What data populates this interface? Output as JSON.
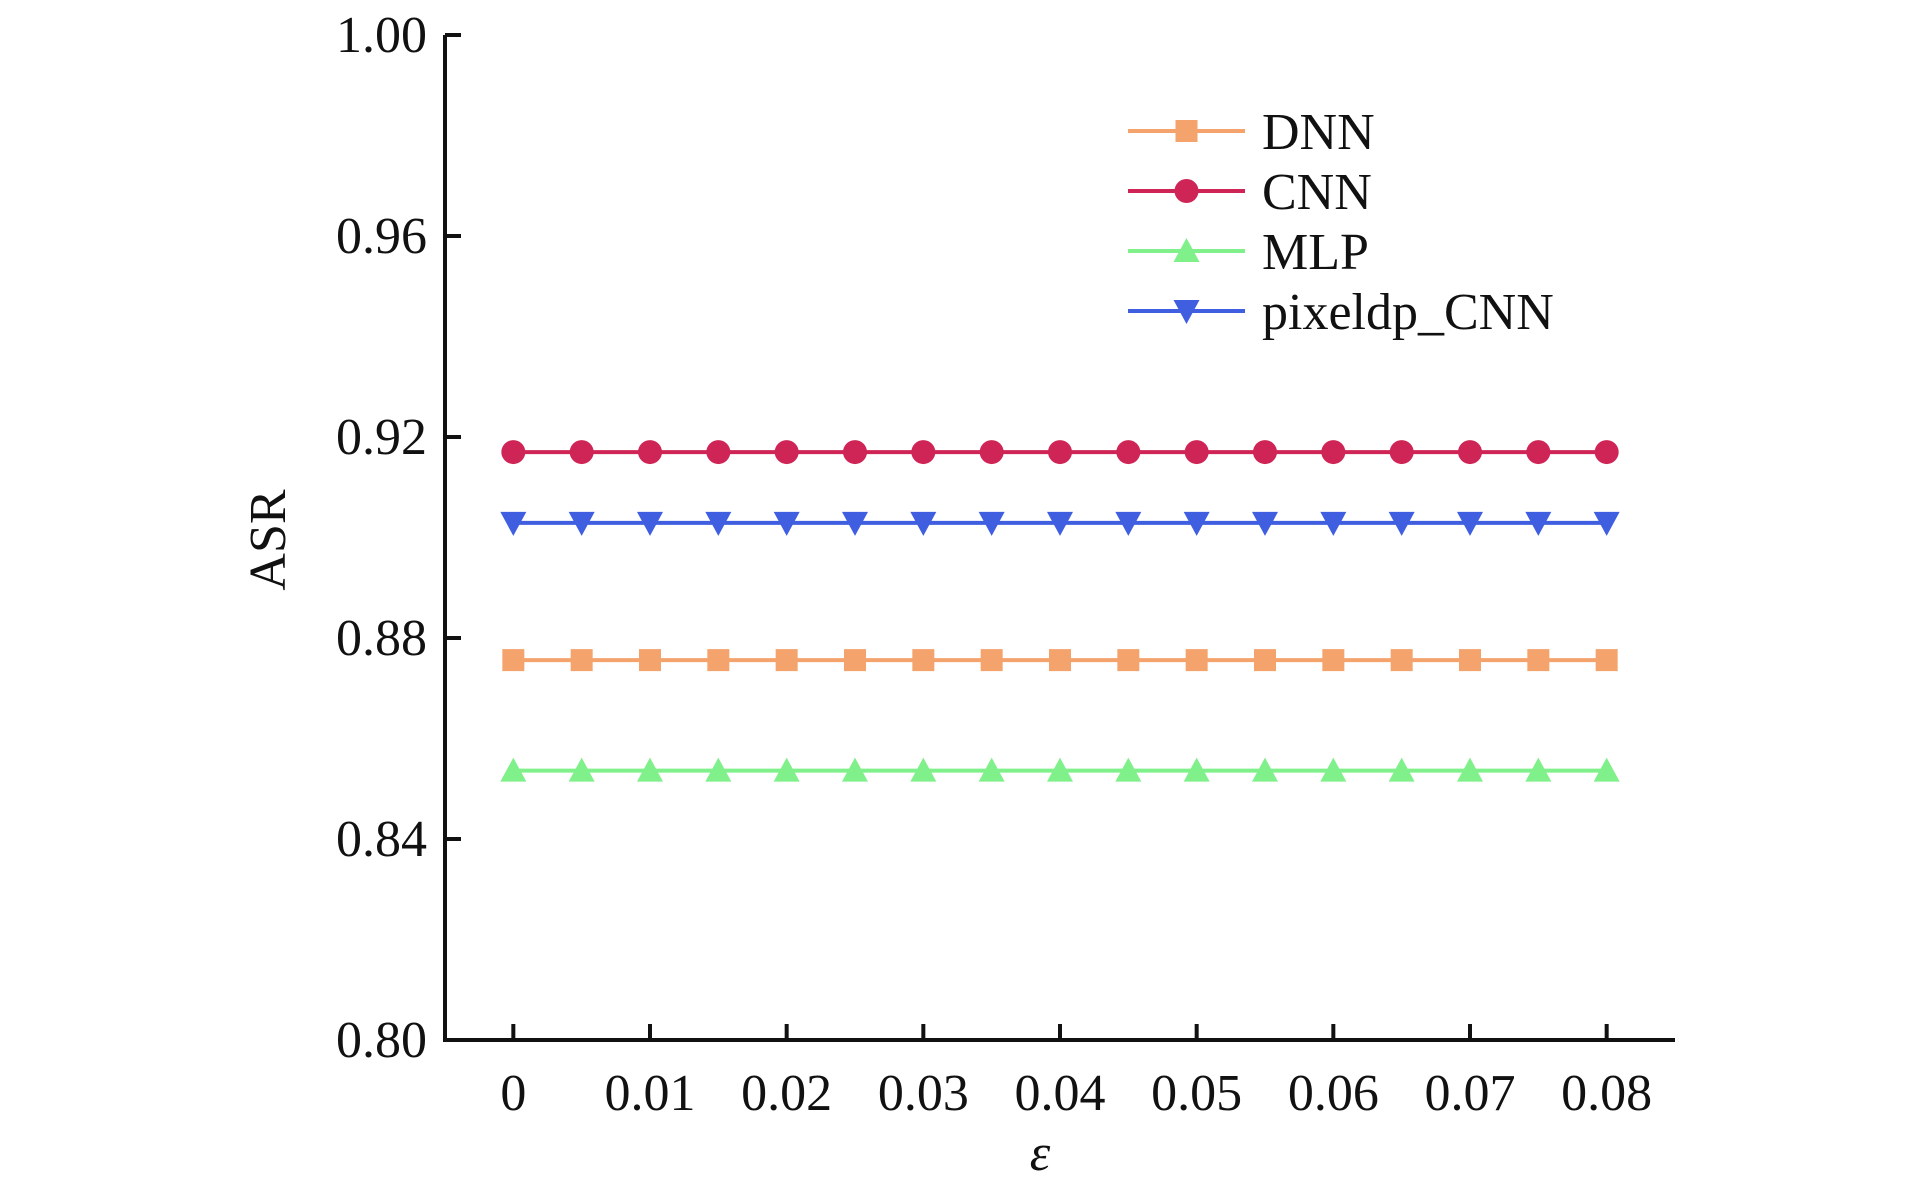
{
  "chart_data": {
    "type": "line",
    "title": "",
    "xlabel": "ε",
    "ylabel": "ASR",
    "x": [
      0,
      0.005,
      0.01,
      0.015,
      0.02,
      0.025,
      0.03,
      0.035,
      0.04,
      0.045,
      0.05,
      0.055,
      0.06,
      0.065,
      0.07,
      0.075,
      0.08
    ],
    "xticks": [
      0,
      0.01,
      0.02,
      0.03,
      0.04,
      0.05,
      0.06,
      0.07,
      0.08
    ],
    "xtick_labels": [
      "0",
      "0.01",
      "0.02",
      "0.03",
      "0.04",
      "0.05",
      "0.06",
      "0.07",
      "0.08"
    ],
    "xlim": [
      -0.005,
      0.085
    ],
    "yticks": [
      0.8,
      0.84,
      0.88,
      0.92,
      0.96,
      1.0
    ],
    "ytick_labels": [
      "0.80",
      "0.84",
      "0.88",
      "0.92",
      "0.96",
      "1.00"
    ],
    "ylim": [
      0.8,
      1.0
    ],
    "grid": false,
    "legend_position": "top-right",
    "series": [
      {
        "name": "DNN",
        "color": "#F5A36C",
        "marker": "square",
        "values": [
          0.8756,
          0.8756,
          0.8756,
          0.8756,
          0.8756,
          0.8756,
          0.8756,
          0.8756,
          0.8756,
          0.8756,
          0.8756,
          0.8756,
          0.8756,
          0.8756,
          0.8756,
          0.8756,
          0.8756
        ]
      },
      {
        "name": "CNN",
        "color": "#CF2456",
        "marker": "circle",
        "values": [
          0.917,
          0.917,
          0.917,
          0.917,
          0.917,
          0.917,
          0.917,
          0.917,
          0.917,
          0.917,
          0.917,
          0.917,
          0.917,
          0.917,
          0.917,
          0.917,
          0.917
        ]
      },
      {
        "name": "MLP",
        "color": "#7FF08A",
        "marker": "triangle-up",
        "values": [
          0.8536,
          0.8536,
          0.8536,
          0.8536,
          0.8536,
          0.8536,
          0.8536,
          0.8536,
          0.8536,
          0.8536,
          0.8536,
          0.8536,
          0.8536,
          0.8536,
          0.8536,
          0.8536,
          0.8536
        ]
      },
      {
        "name": "pixeldp_CNN",
        "color": "#3F5FE0",
        "marker": "triangle-down",
        "values": [
          0.9029,
          0.9029,
          0.9029,
          0.9029,
          0.9029,
          0.9029,
          0.9029,
          0.9029,
          0.9029,
          0.9029,
          0.9029,
          0.9029,
          0.9029,
          0.9029,
          0.9029,
          0.9029,
          0.9029
        ]
      }
    ]
  }
}
